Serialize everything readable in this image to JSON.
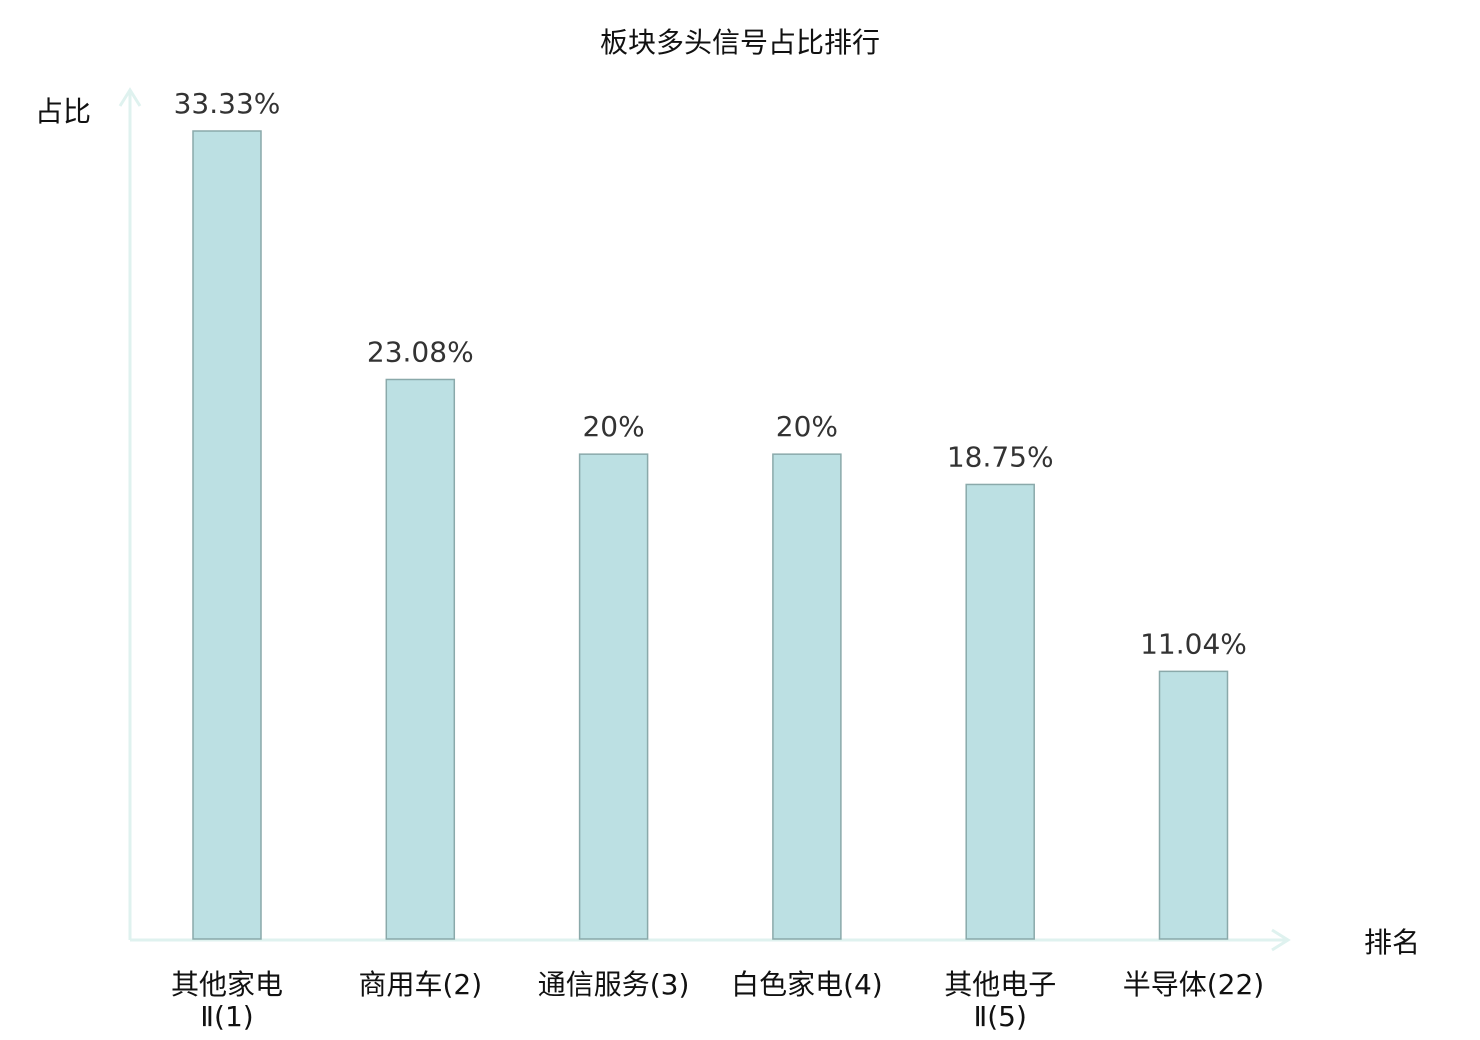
{
  "chart_data": {
    "type": "bar",
    "title": "板块多头信号占比排行",
    "xlabel": "排名",
    "ylabel": "占比",
    "categories": [
      [
        "其他家电",
        "Ⅱ(1)"
      ],
      [
        "商用车(2)"
      ],
      [
        "通信服务(3)"
      ],
      [
        "白色家电(4)"
      ],
      [
        "其他电子",
        "Ⅱ(5)"
      ],
      [
        "半导体(22)"
      ]
    ],
    "values": [
      33.33,
      23.08,
      20,
      20,
      18.75,
      11.04
    ],
    "value_labels": [
      "33.33%",
      "23.08%",
      "20%",
      "20%",
      "18.75%",
      "11.04%"
    ],
    "highlight_index": 5,
    "ylim": [
      0,
      33.33
    ],
    "grid": false,
    "colors": {
      "bar_fill": "#bce0e3",
      "bar_stroke": "#8aa9aa",
      "axis": "#dff2ef",
      "highlight_label": "#e81818",
      "label": "#111111"
    }
  }
}
